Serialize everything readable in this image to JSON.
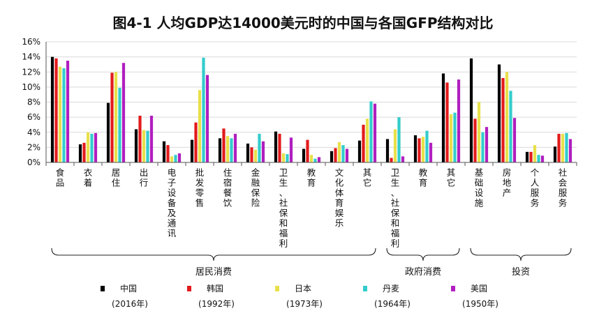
{
  "chart_data": {
    "type": "bar",
    "title": "图4-1 人均GDP达14000美元时的中国与各国GFP结构对比",
    "xlabel": "",
    "ylabel": "",
    "ylim": [
      0,
      16
    ],
    "yticks": [
      "0%",
      "2%",
      "4%",
      "6%",
      "8%",
      "10%",
      "12%",
      "14%",
      "16%"
    ],
    "grid": true,
    "categories": [
      "食品",
      "衣着",
      "居住",
      "出行",
      "电子设备及通讯",
      "批发零售",
      "住宿餐饮",
      "金融保险",
      "卫生、社保和福利",
      "教育",
      "文化体育娱乐",
      "其它",
      "卫生、社保和福利",
      "教育",
      "其它",
      "基础设施",
      "房地产",
      "个人服务",
      "社会服务"
    ],
    "groups": [
      {
        "label": "居民消费",
        "start": 0,
        "end": 11
      },
      {
        "label": "政府消费",
        "start": 12,
        "end": 14
      },
      {
        "label": "投资",
        "start": 15,
        "end": 18
      }
    ],
    "series": [
      {
        "name": "中国",
        "year": "(2016年)",
        "color": "#000000",
        "values": [
          14.0,
          2.4,
          7.9,
          4.4,
          2.8,
          3.0,
          3.2,
          2.5,
          4.1,
          1.8,
          1.5,
          2.9,
          3.1,
          3.6,
          11.8,
          13.8,
          13.0,
          1.4,
          2.1
        ]
      },
      {
        "name": "韩国",
        "year": "(1992年)",
        "color": "#e31a1c",
        "values": [
          13.8,
          2.6,
          11.9,
          6.2,
          2.3,
          5.3,
          4.5,
          2.0,
          3.8,
          3.0,
          1.9,
          5.0,
          0.6,
          3.2,
          10.6,
          5.8,
          11.2,
          1.4,
          3.8
        ]
      },
      {
        "name": "日本",
        "year": "(1973年)",
        "color": "#e8e04a",
        "values": [
          12.7,
          4.0,
          12.0,
          4.3,
          0.8,
          9.6,
          3.5,
          1.7,
          1.2,
          1.0,
          2.7,
          5.8,
          4.4,
          3.4,
          6.4,
          8.0,
          12.0,
          2.3,
          3.8
        ]
      },
      {
        "name": "丹麦",
        "year": "(1964年)",
        "color": "#33cccc",
        "values": [
          12.5,
          3.8,
          9.9,
          4.2,
          1.0,
          13.9,
          3.2,
          3.8,
          1.1,
          0.5,
          2.3,
          8.1,
          6.0,
          4.2,
          6.6,
          4.0,
          9.5,
          1.0,
          3.9
        ]
      },
      {
        "name": "美国",
        "year": "(1950年)",
        "color": "#b01fbf",
        "values": [
          13.5,
          3.9,
          13.2,
          6.2,
          1.2,
          11.6,
          3.8,
          2.8,
          3.3,
          0.7,
          1.8,
          7.8,
          0.8,
          2.6,
          11.0,
          4.7,
          5.9,
          0.9,
          3.1
        ]
      }
    ],
    "legend_position": "bottom"
  }
}
